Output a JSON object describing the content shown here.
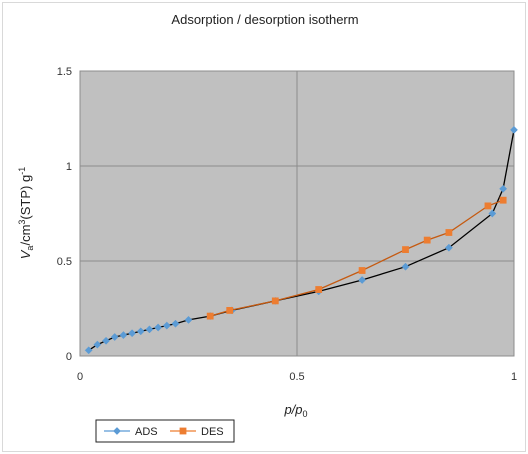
{
  "chart_data": {
    "type": "scatter",
    "title": "Adsorption / desorption isotherm",
    "xlabel_main": "p/p",
    "xlabel_sub": "0",
    "ylabel_main": "V",
    "ylabel_sub": "a",
    "ylabel_rest": "/cm",
    "ylabel_sup": "3",
    "ylabel_rest2": "(STP) g",
    "ylabel_sup2": "-1",
    "xlim": [
      0,
      1
    ],
    "ylim": [
      0,
      1.5
    ],
    "x_ticks": [
      0,
      0.5,
      1
    ],
    "x_tick_labels": [
      "0",
      "0.5",
      "1"
    ],
    "y_ticks": [
      0,
      0.5,
      1,
      1.5
    ],
    "y_tick_labels": [
      "0",
      "0.5",
      "1",
      "1.5"
    ],
    "grid": true,
    "legend_position": "bottom-left",
    "plot_background": "#c0c0c0",
    "series": [
      {
        "name": "ADS",
        "color": "#000000",
        "marker_color": "#5b9bd5",
        "marker": "diamond",
        "x": [
          0.02,
          0.04,
          0.06,
          0.08,
          0.1,
          0.12,
          0.14,
          0.16,
          0.18,
          0.2,
          0.22,
          0.25,
          0.3,
          0.35,
          0.45,
          0.55,
          0.65,
          0.75,
          0.85,
          0.95,
          0.975,
          1.0
        ],
        "y": [
          0.03,
          0.06,
          0.08,
          0.1,
          0.11,
          0.12,
          0.13,
          0.14,
          0.15,
          0.16,
          0.17,
          0.19,
          0.21,
          0.24,
          0.29,
          0.34,
          0.4,
          0.47,
          0.57,
          0.75,
          0.88,
          1.19
        ]
      },
      {
        "name": "DES",
        "color": "#c55a11",
        "marker_color": "#ed7d31",
        "marker": "square",
        "x": [
          0.3,
          0.345,
          0.45,
          0.55,
          0.65,
          0.75,
          0.8,
          0.85,
          0.94,
          0.975
        ],
        "y": [
          0.21,
          0.24,
          0.29,
          0.35,
          0.45,
          0.56,
          0.61,
          0.65,
          0.79,
          0.82
        ]
      }
    ]
  }
}
